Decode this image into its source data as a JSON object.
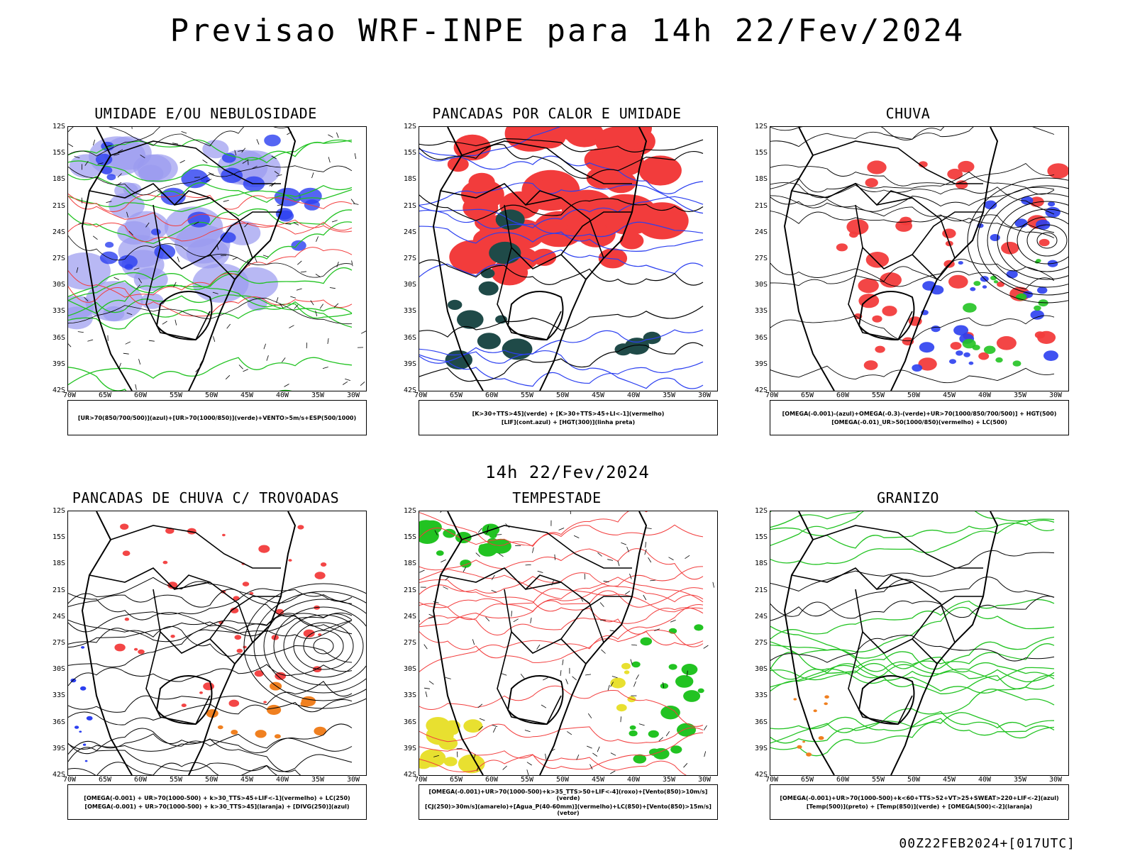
{
  "title": "Previsao WRF-INPE  para 14h 22/Fev/2024",
  "subtitle": "14h 22/Fev/2024",
  "footer": "00Z22FEB2024+[017UTC]",
  "lat_labels": [
    "12S",
    "15S",
    "18S",
    "21S",
    "24S",
    "27S",
    "30S",
    "33S",
    "36S",
    "39S",
    "42S"
  ],
  "lon_labels": [
    "70W",
    "65W",
    "60W",
    "55W",
    "50W",
    "45W",
    "40W",
    "35W",
    "30W"
  ],
  "panels": [
    {
      "title": "UMIDADE E/OU NEBULOSIDADE",
      "legend": [
        "[UR>70(850/700/500)](azul)+[UR>70(1000/850)](verde)+VENTO>5m/s+ESP(500/1000)"
      ]
    },
    {
      "title": "PANCADAS POR CALOR E UMIDADE",
      "legend": [
        "[K>30+TTS>45](verde)  +  [K>30+TTS>45+LI<-1](vermelho)",
        "[LIF](cont.azul)  +  [HGT(300)](linha preta)"
      ]
    },
    {
      "title": "CHUVA",
      "legend": [
        "[OMEGA(-0.001)-(azul)+OMEGA(-0.3)-(verde)+UR>70(1000/850/700/500)]  +  HGT(500)",
        "[OMEGA(-0.01)_UR>50(1000/850)(vermelho)  +  LC(500)"
      ]
    },
    {
      "title": "PANCADAS DE CHUVA C/ TROVOADAS",
      "legend": [
        "[OMEGA(-0.001)  +  UR>70(1000-500)  +  k>30_TTS>45+LIF<-1](vermelho)  +  LC(250)",
        "[OMEGA(-0.001)  +  UR>70(1000-500)  +  k>30_TTS>45](laranja)  +  [DIVG(250)](azul)"
      ]
    },
    {
      "title": "TEMPESTADE",
      "legend": [
        "[OMEGA(-0.001)+UR>70(1000-500)+k>35_TTS>50+LIF<-4](roxo)+[Vento(850)>10m/s](verde)",
        "[CJ(250)>30m/s](amarelo)+[Agua_P(40-60mm)](vermelho)+LC(850)+[Vento(850)>15m/s](vetor)"
      ]
    },
    {
      "title": "GRANIZO",
      "legend": [
        "[OMEGA(-0.001)+UR>70(1000-500)+k<60+TTS>52+VT>25+SWEAT>220+LIF<-2](azul)",
        "[Temp(500)](preto)  +  [Temp(850)](verde)  +  [OMEGA(500)<-2](laranja)"
      ]
    }
  ],
  "colors": {
    "red": "#f23c3c",
    "blue": "#2b3ff0",
    "green": "#22c322",
    "lightblue": "#9a9af0",
    "darkteal": "#1f4a48",
    "yellow": "#e8e030",
    "orange": "#f08020"
  }
}
